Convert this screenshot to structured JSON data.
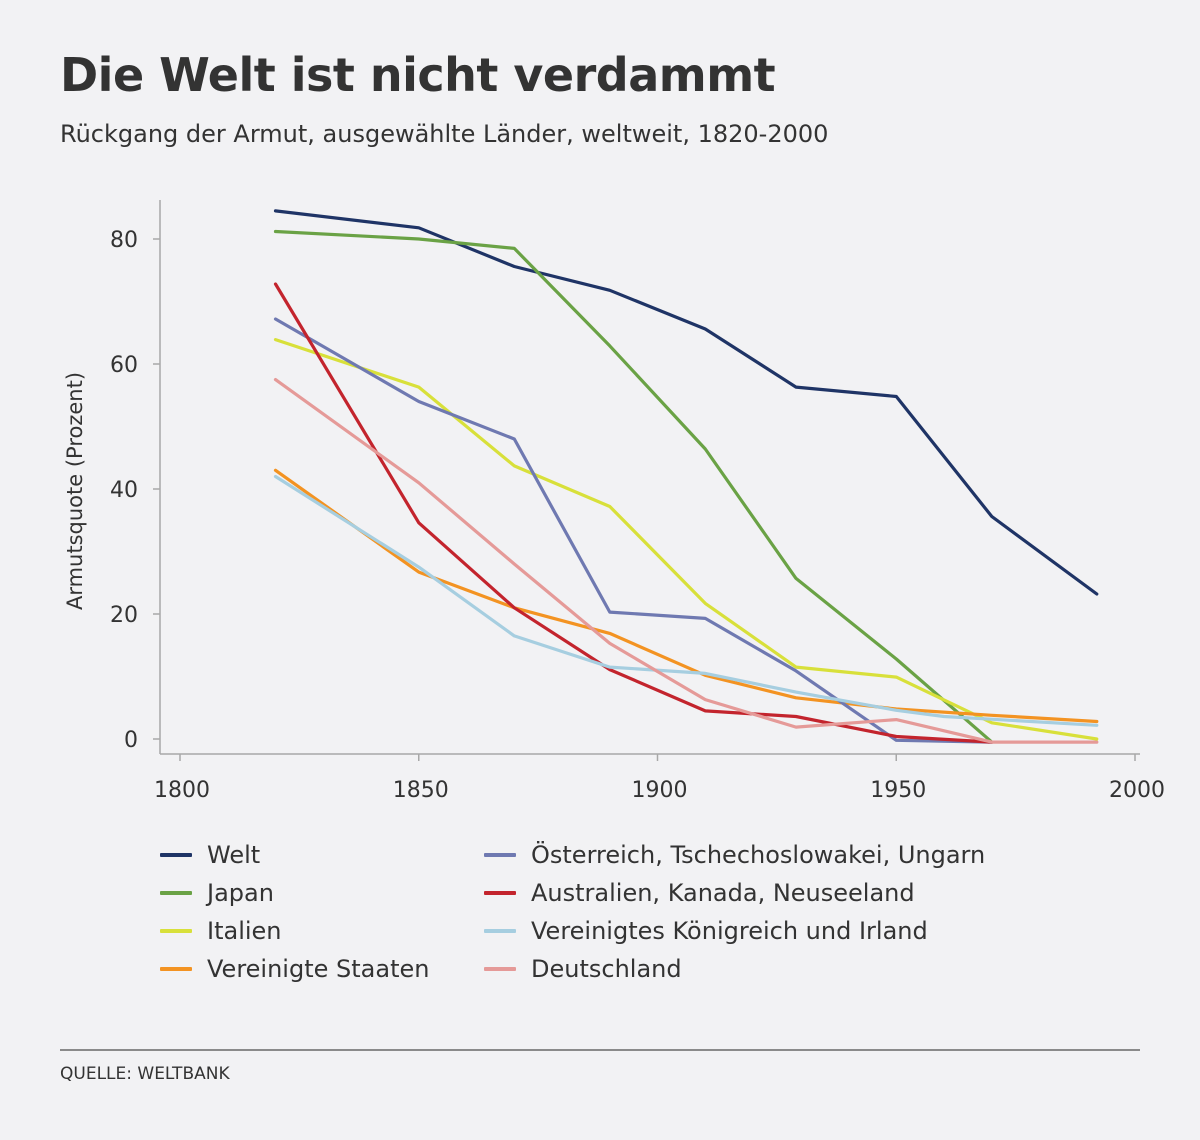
{
  "title": "Die Welt ist nicht verdammt",
  "subtitle": "Rückgang der Armut, ausgewählte Länder, weltweit, 1820-2000",
  "source": "QUELLE: WELTBANK",
  "chart_data": {
    "type": "line",
    "title": "Die Welt ist nicht verdammt",
    "subtitle": "Rückgang der Armut, ausgewählte Länder, weltweit, 1820-2000",
    "xlabel": "",
    "ylabel": "Armutsquote (Prozent)",
    "xlim": [
      1800,
      2000
    ],
    "ylim": [
      -2,
      85
    ],
    "xticks": [
      1800,
      1850,
      1900,
      1950,
      2000
    ],
    "yticks": [
      0,
      20,
      40,
      60,
      80
    ],
    "grid": false,
    "legend_position": "bottom",
    "series": [
      {
        "name": "Welt",
        "color": "#1f3466",
        "x": [
          1820,
          1850,
          1870,
          1890,
          1910,
          1929,
          1950,
          1970,
          1992
        ],
        "y": [
          84.5,
          81.8,
          75.6,
          71.8,
          65.6,
          56.3,
          54.8,
          35.6,
          23.2
        ]
      },
      {
        "name": "Japan",
        "color": "#6aa245",
        "x": [
          1820,
          1850,
          1870,
          1890,
          1910,
          1929,
          1950,
          1970
        ],
        "y": [
          81.2,
          80.0,
          78.5,
          62.9,
          46.4,
          25.7,
          12.8,
          -0.5
        ]
      },
      {
        "name": "Italien",
        "color": "#d8e03a",
        "x": [
          1820,
          1850,
          1870,
          1890,
          1910,
          1929,
          1950,
          1970,
          1992
        ],
        "y": [
          63.9,
          56.3,
          43.7,
          37.2,
          21.7,
          11.5,
          9.9,
          2.6,
          0.0
        ]
      },
      {
        "name": "Vereinigte Staaten",
        "color": "#f39322",
        "x": [
          1820,
          1850,
          1870,
          1890,
          1910,
          1929,
          1950,
          1970,
          1992
        ],
        "y": [
          43.0,
          26.7,
          21.0,
          16.9,
          10.2,
          6.6,
          4.8,
          3.8,
          2.8
        ]
      },
      {
        "name": "Österreich, Tschechoslowakei, Ungarn",
        "color": "#6f79b1",
        "x": [
          1820,
          1850,
          1870,
          1890,
          1910,
          1929,
          1950,
          1970
        ],
        "y": [
          67.2,
          54.0,
          48.0,
          20.3,
          19.3,
          10.9,
          -0.2,
          -0.5
        ]
      },
      {
        "name": "Australien, Kanada, Neuseeland",
        "color": "#c3242d",
        "x": [
          1820,
          1850,
          1870,
          1890,
          1910,
          1929,
          1950,
          1970
        ],
        "y": [
          72.8,
          34.6,
          21.0,
          11.1,
          4.5,
          3.6,
          0.4,
          -0.5
        ]
      },
      {
        "name": "Vereinigtes Königreich und Irland",
        "color": "#a6cee0",
        "x": [
          1820,
          1850,
          1870,
          1890,
          1910,
          1929,
          1950,
          1960,
          1992
        ],
        "y": [
          42.0,
          27.5,
          16.5,
          11.5,
          10.5,
          7.5,
          4.6,
          3.6,
          2.2
        ]
      },
      {
        "name": "Deutschland",
        "color": "#e59a98",
        "x": [
          1820,
          1850,
          1870,
          1890,
          1910,
          1929,
          1950,
          1970,
          1992
        ],
        "y": [
          57.5,
          41.0,
          28.0,
          15.3,
          6.3,
          1.9,
          3.1,
          -0.5,
          -0.5
        ]
      }
    ]
  }
}
